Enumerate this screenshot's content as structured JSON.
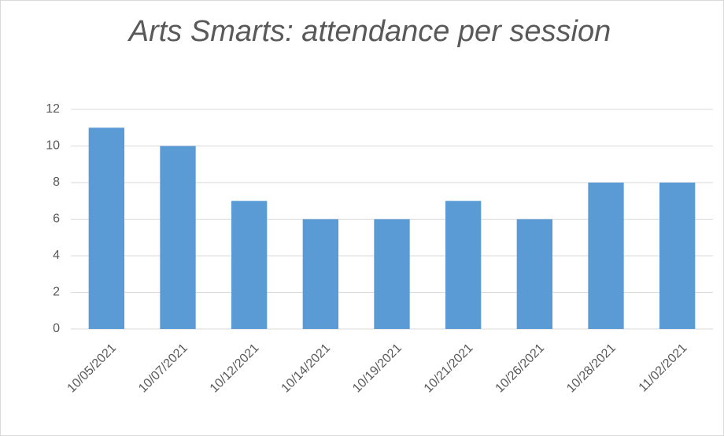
{
  "chart_data": {
    "type": "bar",
    "title": "Arts Smarts: attendance per session",
    "categories": [
      "10/05/2021",
      "10/07/2021",
      "10/12/2021",
      "10/14/2021",
      "10/19/2021",
      "10/21/2021",
      "10/26/2021",
      "10/28/2021",
      "11/02/2021"
    ],
    "values": [
      11,
      10,
      7,
      6,
      6,
      7,
      6,
      8,
      8
    ],
    "color": "#5b9bd5",
    "ylim": [
      0,
      12
    ],
    "yticks": [
      0,
      2,
      4,
      6,
      8,
      10,
      12
    ],
    "grid": true
  }
}
